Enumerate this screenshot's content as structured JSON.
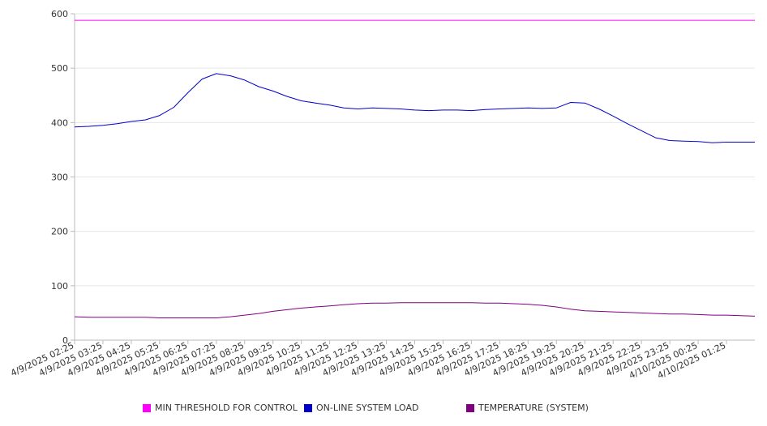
{
  "chart_data": {
    "type": "line",
    "title": "",
    "xlabel": "",
    "ylabel": "",
    "ylim": [
      0,
      600
    ],
    "yticks": [
      0,
      100,
      200,
      300,
      400,
      500,
      600
    ],
    "grid": "horizontal",
    "legend_position": "bottom",
    "x_ticks": [
      "4/9/2025 02:25",
      "4/9/2025 03:25",
      "4/9/2025 04:25",
      "4/9/2025 05:25",
      "4/9/2025 06:25",
      "4/9/2025 07:25",
      "4/9/2025 08:25",
      "4/9/2025 09:25",
      "4/9/2025 10:25",
      "4/9/2025 11:25",
      "4/9/2025 12:25",
      "4/9/2025 13:25",
      "4/9/2025 14:25",
      "4/9/2025 15:25",
      "4/9/2025 16:25",
      "4/9/2025 17:25",
      "4/9/2025 18:25",
      "4/9/2025 19:25",
      "4/9/2025 20:25",
      "4/9/2025 21:25",
      "4/9/2025 22:25",
      "4/9/2025 23:25",
      "4/10/2025 00:25",
      "4/10/2025 01:25"
    ],
    "x": [
      "4/9/2025 02:25",
      "4/9/2025 02:55",
      "4/9/2025 03:25",
      "4/9/2025 03:55",
      "4/9/2025 04:25",
      "4/9/2025 04:55",
      "4/9/2025 05:25",
      "4/9/2025 05:55",
      "4/9/2025 06:25",
      "4/9/2025 06:55",
      "4/9/2025 07:25",
      "4/9/2025 07:55",
      "4/9/2025 08:25",
      "4/9/2025 08:55",
      "4/9/2025 09:25",
      "4/9/2025 09:55",
      "4/9/2025 10:25",
      "4/9/2025 10:55",
      "4/9/2025 11:25",
      "4/9/2025 11:55",
      "4/9/2025 12:25",
      "4/9/2025 12:55",
      "4/9/2025 13:25",
      "4/9/2025 13:55",
      "4/9/2025 14:25",
      "4/9/2025 14:55",
      "4/9/2025 15:25",
      "4/9/2025 15:55",
      "4/9/2025 16:25",
      "4/9/2025 16:55",
      "4/9/2025 17:25",
      "4/9/2025 17:55",
      "4/9/2025 18:25",
      "4/9/2025 18:55",
      "4/9/2025 19:25",
      "4/9/2025 19:55",
      "4/9/2025 20:25",
      "4/9/2025 20:55",
      "4/9/2025 21:25",
      "4/9/2025 21:55",
      "4/9/2025 22:25",
      "4/9/2025 22:55",
      "4/9/2025 23:25",
      "4/9/2025 23:55",
      "4/10/2025 00:25",
      "4/10/2025 00:55",
      "4/10/2025 01:25",
      "4/10/2025 01:55",
      "4/10/2025 02:25"
    ],
    "series": [
      {
        "name": "MIN THRESHOLD FOR CONTROL",
        "color": "#ff00ff",
        "values": [
          588,
          588,
          588,
          588,
          588,
          588,
          588,
          588,
          588,
          588,
          588,
          588,
          588,
          588,
          588,
          588,
          588,
          588,
          588,
          588,
          588,
          588,
          588,
          588,
          588,
          588,
          588,
          588,
          588,
          588,
          588,
          588,
          588,
          588,
          588,
          588,
          588,
          588,
          588,
          588,
          588,
          588,
          588,
          588,
          588,
          588,
          588,
          588,
          588
        ]
      },
      {
        "name": "ON-LINE SYSTEM LOAD",
        "color": "#0000cc",
        "values": [
          392,
          393,
          395,
          398,
          402,
          405,
          413,
          428,
          455,
          480,
          490,
          486,
          478,
          466,
          458,
          448,
          440,
          436,
          432,
          427,
          425,
          427,
          426,
          425,
          423,
          422,
          423,
          423,
          422,
          424,
          425,
          426,
          427,
          426,
          427,
          437,
          436,
          425,
          412,
          398,
          385,
          372,
          367,
          366,
          365,
          363,
          364,
          364,
          364
        ]
      },
      {
        "name": "TEMPERATURE (SYSTEM)",
        "color": "#800080",
        "values": [
          43,
          42,
          42,
          42,
          42,
          42,
          41,
          41,
          41,
          41,
          41,
          43,
          46,
          49,
          53,
          56,
          59,
          61,
          63,
          65,
          67,
          68,
          68,
          69,
          69,
          69,
          69,
          69,
          69,
          68,
          68,
          67,
          66,
          64,
          61,
          57,
          54,
          53,
          52,
          51,
          50,
          49,
          48,
          48,
          47,
          46,
          46,
          45,
          44
        ]
      }
    ]
  }
}
